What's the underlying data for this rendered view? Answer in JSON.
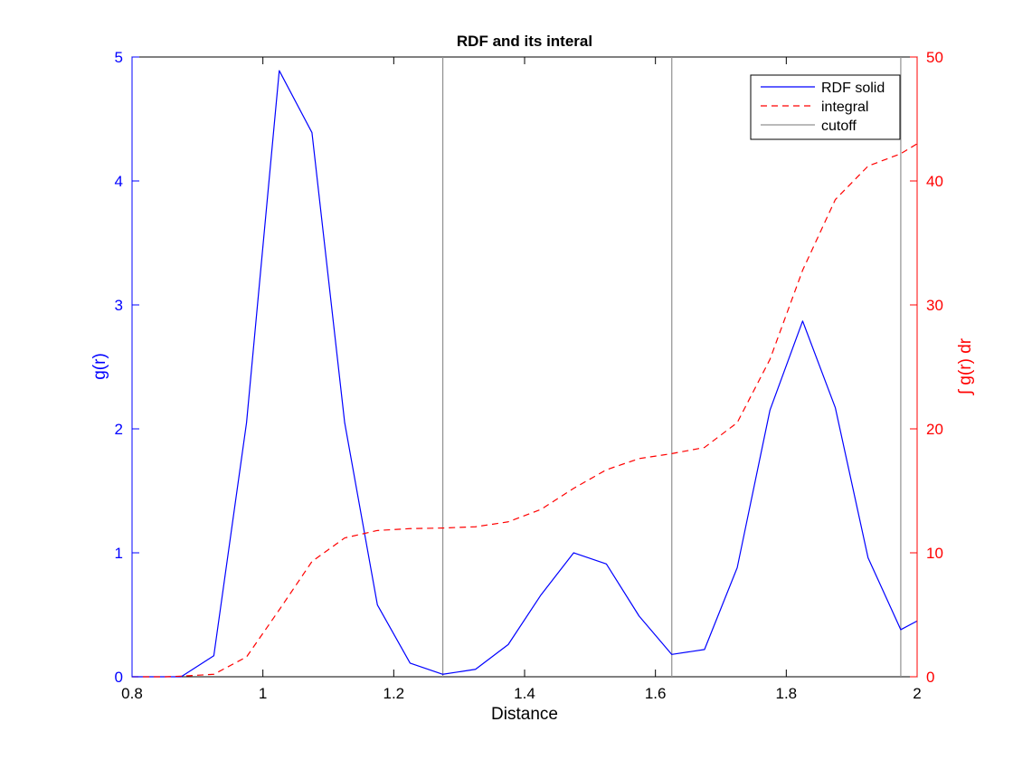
{
  "chart_data": {
    "type": "line",
    "title": "RDF and its interal",
    "xlabel": "Distance",
    "ylabel_left": "g(r)",
    "ylabel_right": "∫ g(r) dr",
    "xlim": [
      0.8,
      2.0
    ],
    "ylim_left": [
      0,
      5
    ],
    "ylim_right": [
      0,
      50
    ],
    "x_ticks": [
      "0.8",
      "1",
      "1.2",
      "1.4",
      "1.6",
      "1.8",
      "2"
    ],
    "y_ticks_left": [
      "0",
      "1",
      "2",
      "3",
      "4",
      "5"
    ],
    "y_ticks_right": [
      "0",
      "10",
      "20",
      "30",
      "40",
      "50"
    ],
    "grid": false,
    "legend_position": "top-right",
    "colors": {
      "left_axis": "#0000ff",
      "right_axis": "#ff0000",
      "cutoff": "#909090",
      "axes": "#000000"
    },
    "series": [
      {
        "name": "RDF solid",
        "axis": "left",
        "style": "solid",
        "color": "#0000ff",
        "x": [
          0.8,
          0.825,
          0.85,
          0.875,
          0.925,
          0.975,
          1.025,
          1.075,
          1.125,
          1.175,
          1.225,
          1.275,
          1.325,
          1.375,
          1.425,
          1.475,
          1.525,
          1.575,
          1.625,
          1.675,
          1.725,
          1.775,
          1.825,
          1.875,
          1.925,
          1.975,
          2.0
        ],
        "y": [
          0,
          0,
          0,
          0,
          0.17,
          2.05,
          4.89,
          4.39,
          2.05,
          0.58,
          0.11,
          0.02,
          0.06,
          0.26,
          0.66,
          1.0,
          0.91,
          0.49,
          0.18,
          0.22,
          0.88,
          2.15,
          2.87,
          2.17,
          0.96,
          0.38,
          0.45
        ]
      },
      {
        "name": "integral",
        "axis": "right",
        "style": "dashed",
        "color": "#ff0000",
        "x": [
          0.8,
          0.85,
          0.875,
          0.925,
          0.975,
          1.025,
          1.075,
          1.125,
          1.175,
          1.225,
          1.275,
          1.325,
          1.375,
          1.425,
          1.475,
          1.525,
          1.575,
          1.625,
          1.675,
          1.725,
          1.775,
          1.825,
          1.875,
          1.925,
          1.975,
          2.0
        ],
        "y": [
          0,
          0,
          0.05,
          0.2,
          1.6,
          5.4,
          9.3,
          11.2,
          11.8,
          11.95,
          12.0,
          12.1,
          12.5,
          13.5,
          15.2,
          16.7,
          17.6,
          18.0,
          18.5,
          20.5,
          25.6,
          32.8,
          38.5,
          41.2,
          42.2,
          43.0
        ]
      },
      {
        "name": "cutoff",
        "axis": "left",
        "style": "vertical-lines",
        "color": "#909090",
        "x": [
          1.275,
          1.625,
          1.975
        ]
      }
    ]
  }
}
